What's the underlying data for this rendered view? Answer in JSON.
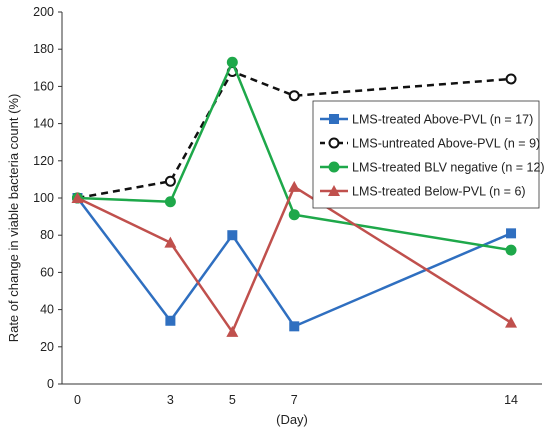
{
  "chart_data": {
    "type": "line",
    "title": "",
    "xlabel": "(Day)",
    "ylabel": "Rate of change in viable bacteria count  (%)",
    "x": [
      0,
      3,
      5,
      7,
      14
    ],
    "xticks": [
      "0",
      "3",
      "5",
      "7",
      "14"
    ],
    "xlim": [
      -0.5,
      15
    ],
    "ylim": [
      0,
      200
    ],
    "yticks": [
      "0",
      "20",
      "40",
      "60",
      "80",
      "100",
      "120",
      "140",
      "160",
      "180",
      "200"
    ],
    "grid": false,
    "legend_position": "right",
    "series": [
      {
        "name": "LMS-treated Above-PVL (n = 17)",
        "values": [
          100,
          34,
          80,
          31,
          81
        ],
        "color": "#2f6fc0",
        "marker": "square",
        "line": "solid"
      },
      {
        "name": "LMS-untreated Above-PVL (n = 9)",
        "values": [
          100,
          109,
          168,
          155,
          164
        ],
        "color": "#111111",
        "marker": "open-circle",
        "line": "dashed"
      },
      {
        "name": "LMS-treated BLV negative (n = 12)",
        "values": [
          100,
          98,
          173,
          91,
          72
        ],
        "color": "#1ea84a",
        "marker": "circle",
        "line": "solid"
      },
      {
        "name": "LMS-treated Below-PVL (n = 6)",
        "values": [
          100,
          76,
          28,
          106,
          33
        ],
        "color": "#c0504d",
        "marker": "triangle",
        "line": "solid"
      }
    ]
  }
}
